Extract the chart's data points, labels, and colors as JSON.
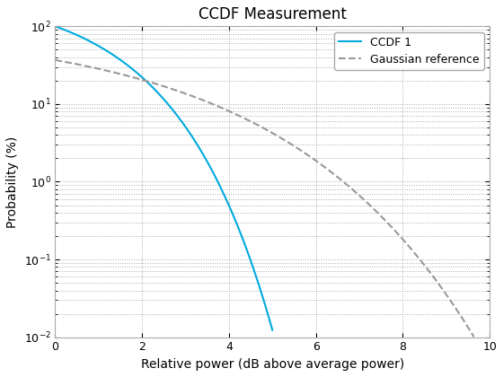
{
  "title": "CCDF Measurement",
  "xlabel": "Relative power (dB above average power)",
  "ylabel": "Probability (%)",
  "xlim": [
    0,
    10
  ],
  "ylim": [
    0.01,
    100
  ],
  "ccdf1_color": "#00AADD",
  "gaussian_color": "#999999",
  "ccdf1_label": "CCDF 1",
  "gaussian_label": "Gaussian reference",
  "background_color": "#ffffff",
  "grid_color": "#aaaaaa",
  "title_fontsize": 12,
  "label_fontsize": 10
}
